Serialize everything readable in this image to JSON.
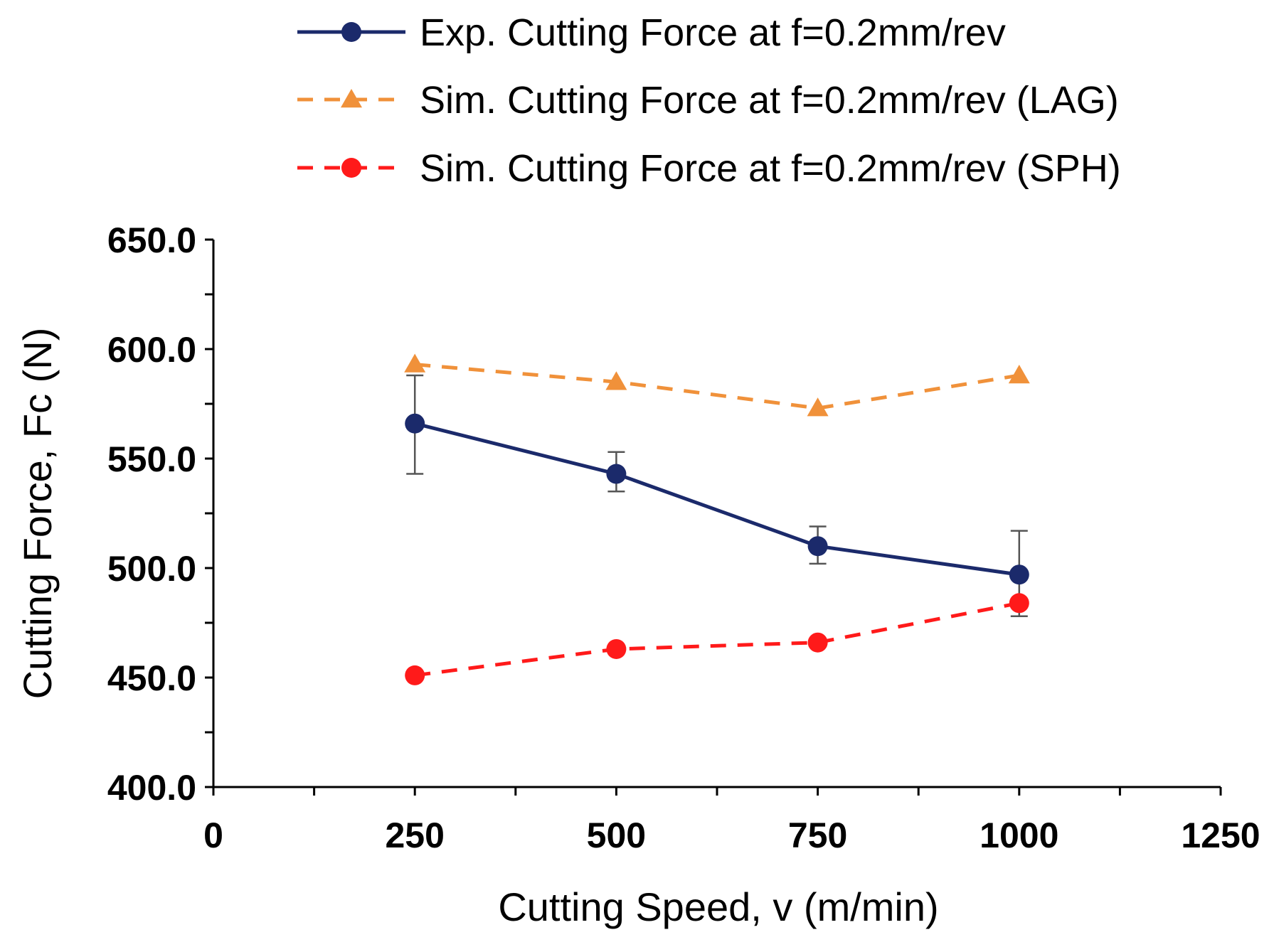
{
  "chart_data": {
    "type": "line",
    "xlabel": "Cutting Speed, v (m/min)",
    "ylabel": "Cutting Force, Fc  (N)",
    "xlim": [
      0,
      1250
    ],
    "ylim": [
      400,
      650
    ],
    "x_ticks": [
      "0",
      "250",
      "500",
      "750",
      "1000",
      "1250"
    ],
    "y_ticks": [
      "400.0",
      "450.0",
      "500.0",
      "550.0",
      "600.0",
      "650.0"
    ],
    "x_tick_values": [
      0,
      250,
      500,
      750,
      1000,
      1250
    ],
    "y_tick_values": [
      400,
      450,
      500,
      550,
      600,
      650
    ],
    "x": [
      250,
      500,
      750,
      1000
    ],
    "grid": false,
    "legend_position": "top",
    "series": [
      {
        "name": "Exp. Cutting Force at f=0.2mm/rev",
        "values": [
          566,
          543,
          510,
          497
        ],
        "error_low": [
          543,
          535,
          502,
          478
        ],
        "error_high": [
          588,
          553,
          519,
          517
        ],
        "color": "#1b2a6b",
        "line_style": "solid",
        "marker": "circle"
      },
      {
        "name": "Sim. Cutting Force at f=0.2mm/rev (LAG)",
        "values": [
          593,
          585,
          573,
          588
        ],
        "color": "#f0913a",
        "line_style": "dashed",
        "marker": "triangle"
      },
      {
        "name": "Sim. Cutting Force at f=0.2mm/rev (SPH)",
        "values": [
          451,
          463,
          466,
          484
        ],
        "color": "#ff1a1a",
        "line_style": "dashed",
        "marker": "circle"
      }
    ]
  }
}
